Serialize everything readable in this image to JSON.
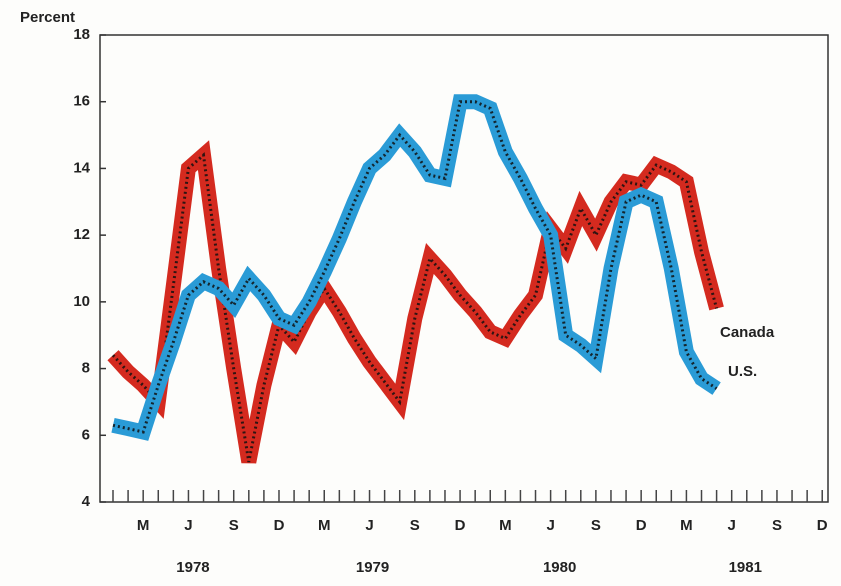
{
  "chart_data": {
    "type": "line",
    "y_axis_label": "Percent",
    "categories": [
      null,
      null,
      "M",
      null,
      null,
      "J",
      null,
      null,
      "S",
      null,
      null,
      "D",
      null,
      null,
      "M",
      null,
      null,
      "J",
      null,
      null,
      "S",
      null,
      null,
      "D",
      null,
      null,
      "M",
      null,
      null,
      "J",
      null,
      null,
      "S",
      null,
      null,
      "D",
      null,
      null,
      "M",
      null,
      null,
      "J",
      null,
      null,
      "S",
      null,
      null,
      "D"
    ],
    "year_labels": [
      "1978",
      "1979",
      "1980",
      "1981"
    ],
    "ylim": [
      4,
      18
    ],
    "yticks": [
      4,
      6,
      8,
      10,
      12,
      14,
      16,
      18
    ],
    "series": [
      {
        "name": "Canada",
        "color": "#d42a1f",
        "values": [
          8.4,
          7.9,
          7.5,
          7.0,
          10.5,
          14.0,
          14.4,
          11.0,
          8.0,
          5.2,
          7.5,
          9.3,
          8.8,
          9.7,
          10.4,
          9.7,
          8.9,
          8.2,
          7.6,
          7.0,
          9.5,
          11.3,
          10.8,
          10.2,
          9.7,
          9.1,
          8.9,
          9.6,
          10.2,
          12.2,
          11.6,
          12.8,
          12.0,
          13.0,
          13.6,
          13.5,
          14.1,
          13.9,
          13.6,
          11.5,
          9.8,
          null,
          null,
          null,
          null,
          null,
          null,
          null
        ]
      },
      {
        "name": "U.S.",
        "color": "#2a9bd6",
        "values": [
          6.3,
          6.2,
          6.1,
          7.5,
          8.8,
          10.2,
          10.6,
          10.4,
          9.9,
          10.7,
          10.2,
          9.5,
          9.3,
          10.0,
          10.9,
          11.9,
          13.0,
          14.0,
          14.4,
          15.0,
          14.5,
          13.8,
          13.7,
          16.0,
          16.0,
          15.8,
          14.5,
          13.7,
          12.8,
          12.0,
          9.0,
          8.7,
          8.3,
          11.0,
          13.0,
          13.2,
          13.0,
          11.0,
          8.5,
          7.7,
          7.4,
          null,
          null,
          null,
          null,
          null,
          null,
          null
        ]
      }
    ]
  }
}
